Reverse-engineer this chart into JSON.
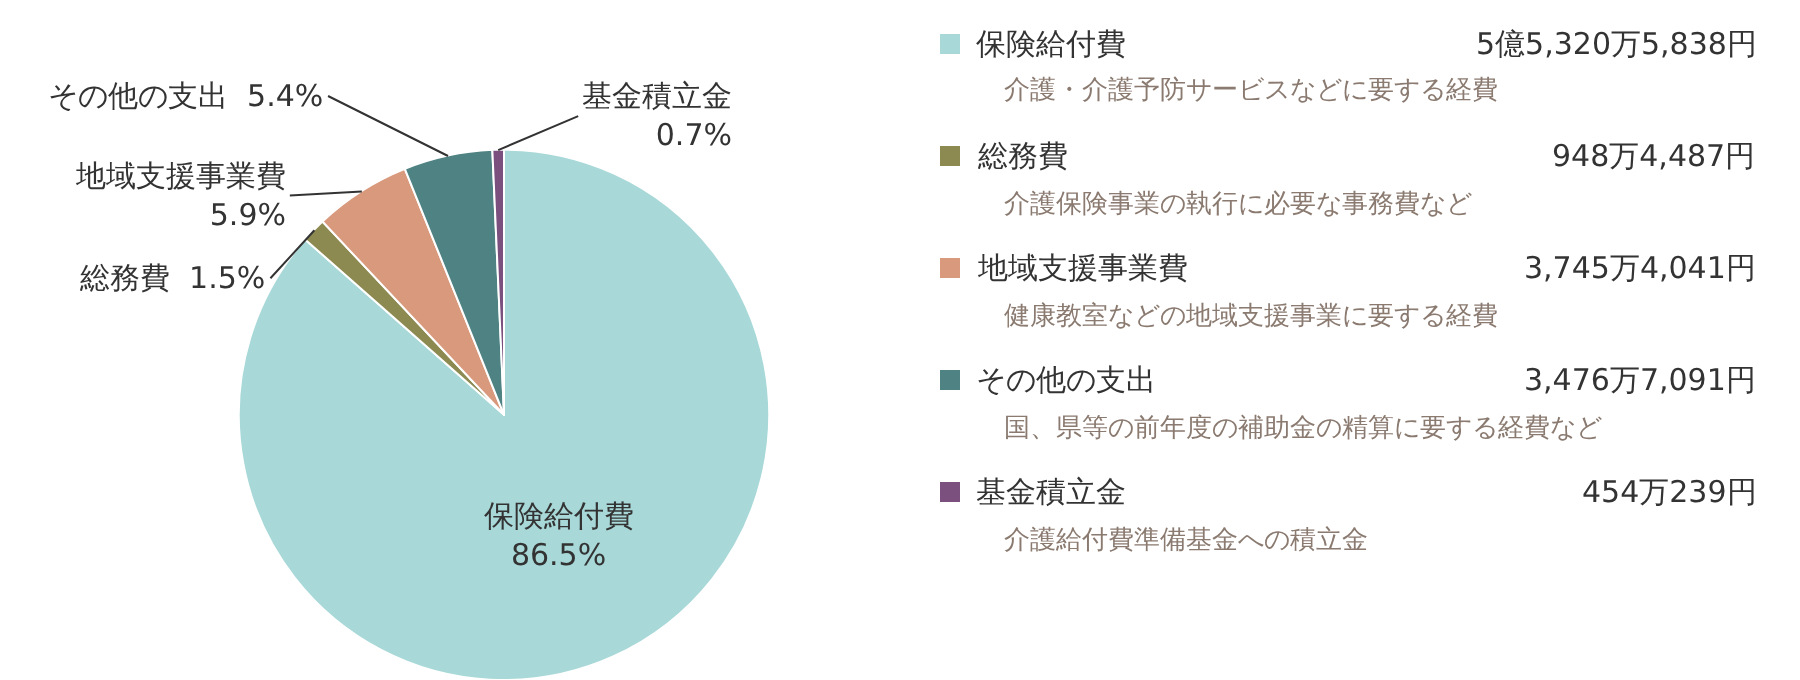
{
  "chart_data": {
    "type": "pie",
    "categories": [
      "保険給付費",
      "総務費",
      "地域支援事業費",
      "その他の支出",
      "基金積立金"
    ],
    "values": [
      86.5,
      1.5,
      5.9,
      5.4,
      0.7
    ],
    "colors": [
      "#a8d8d8",
      "#8c8a50",
      "#d9997c",
      "#4f8283",
      "#7b4f7e"
    ],
    "value_labels": [
      "86.5%",
      "1.5%",
      "5.9%",
      "5.4%",
      "0.7%"
    ],
    "legend": "right",
    "annotations": [
      "5億5,320万5,838円",
      "介護・介護予防サービスなどに要する経費",
      "948万4,487円",
      "介護保険事業の執行に必要な事務費など",
      "3,745万4,041円",
      "健康教室などの地域支援事業に要する経費",
      "3,476万7,091円",
      "国、県等の前年度の補助金の精算に要する経費など",
      "454万239円",
      "介護給付費準備基金への積立金"
    ]
  }
}
